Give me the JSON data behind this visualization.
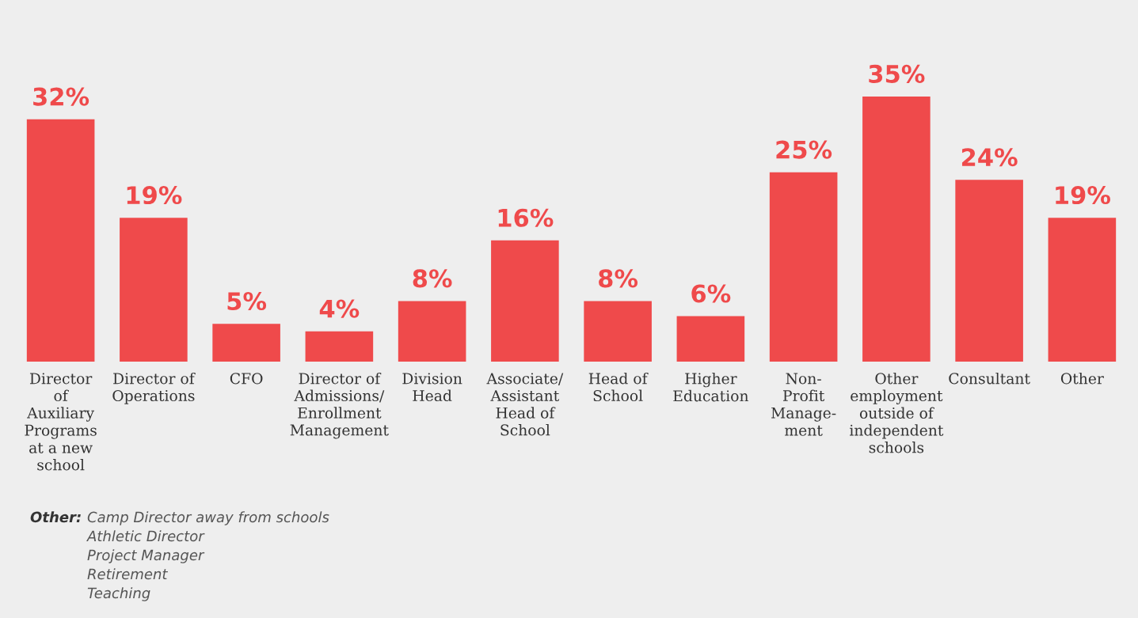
{
  "chart_data": {
    "type": "bar",
    "categories": [
      "Director\nof\nAuxiliary\nPrograms\nat a new\nschool",
      "Director of\nOperations",
      "CFO",
      "Director of\nAdmissions/\nEnrollment\nManagement",
      "Division\nHead",
      "Associate/\nAssistant\nHead of\nSchool",
      "Head of\nSchool",
      "Higher\nEducation",
      "Non-\nProfit\nManage-\nment",
      "Other\nemployment\noutside of\nindependent\nschools",
      "Consultant",
      "Other"
    ],
    "values": [
      32,
      19,
      5,
      4,
      8,
      16,
      8,
      6,
      25,
      35,
      24,
      19
    ],
    "value_labels": [
      "32%",
      "19%",
      "5%",
      "4%",
      "8%",
      "16%",
      "8%",
      "6%",
      "25%",
      "35%",
      "24%",
      "19%"
    ],
    "color": "#ef4a4b",
    "grid": false,
    "legend": false,
    "annotations": [
      "Other:",
      "Camp Director away from schools",
      "Athletic Director",
      "Project Manager",
      "Retirement",
      "Teaching"
    ]
  }
}
